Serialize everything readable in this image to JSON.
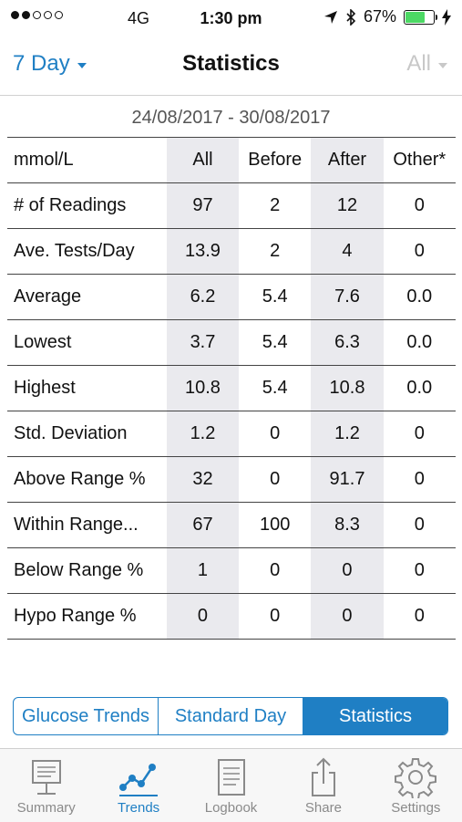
{
  "status_bar": {
    "carrier": "4G",
    "time": "1:30 pm",
    "battery": "67%",
    "battery_color": "#4cd964"
  },
  "nav": {
    "period": "7 Day",
    "title": "Statistics",
    "filter": "All"
  },
  "date_range": "24/08/2017 - 30/08/2017",
  "table": {
    "headers": [
      "mmol/L",
      "All",
      "Before",
      "After",
      "Other*"
    ],
    "rows": [
      {
        "label": "# of Readings",
        "values": [
          "97",
          "2",
          "12",
          "0"
        ]
      },
      {
        "label": "Ave. Tests/Day",
        "values": [
          "13.9",
          "2",
          "4",
          "0"
        ]
      },
      {
        "label": "Average",
        "values": [
          "6.2",
          "5.4",
          "7.6",
          "0.0"
        ]
      },
      {
        "label": "Lowest",
        "values": [
          "3.7",
          "5.4",
          "6.3",
          "0.0"
        ]
      },
      {
        "label": "Highest",
        "values": [
          "10.8",
          "5.4",
          "10.8",
          "0.0"
        ]
      },
      {
        "label": "Std. Deviation",
        "values": [
          "1.2",
          "0",
          "1.2",
          "0"
        ]
      },
      {
        "label": "Above Range %",
        "values": [
          "32",
          "0",
          "91.7",
          "0"
        ]
      },
      {
        "label": "Within Range...",
        "values": [
          "67",
          "100",
          "8.3",
          "0"
        ]
      },
      {
        "label": "Below Range %",
        "values": [
          "1",
          "0",
          "0",
          "0"
        ]
      },
      {
        "label": "Hypo Range %",
        "values": [
          "0",
          "0",
          "0",
          "0"
        ]
      }
    ]
  },
  "segment": {
    "items": [
      "Glucose Trends",
      "Standard Day",
      "Statistics"
    ],
    "active": "Statistics"
  },
  "tabbar": {
    "items": [
      {
        "label": "Summary",
        "icon": "summary-icon"
      },
      {
        "label": "Trends",
        "icon": "trends-icon"
      },
      {
        "label": "Logbook",
        "icon": "logbook-icon"
      },
      {
        "label": "Share",
        "icon": "share-icon"
      },
      {
        "label": "Settings",
        "icon": "gear-icon"
      }
    ],
    "active": "Trends"
  },
  "colors": {
    "accent": "#1f7fc4",
    "inactive": "#8a8a8a",
    "column_shade": "#eaeaee"
  }
}
